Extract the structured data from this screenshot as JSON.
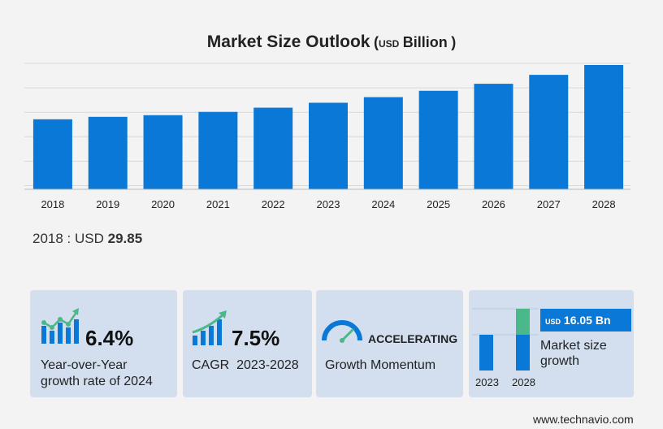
{
  "title": {
    "main": "Market Size Outlook",
    "open": "(",
    "unit": "USD",
    "label": "Billion",
    "close": ")"
  },
  "chart_data": {
    "type": "bar",
    "categories": [
      "2018",
      "2019",
      "2020",
      "2021",
      "2022",
      "2023",
      "2024",
      "2025",
      "2026",
      "2027",
      "2028"
    ],
    "values": [
      29.85,
      30.9,
      31.6,
      33.0,
      34.8,
      36.9,
      39.3,
      42.0,
      45.0,
      48.8,
      53.0
    ],
    "ylim": [
      0,
      53.0
    ],
    "grid": true,
    "bar_color": "#0a78d6"
  },
  "base_year": {
    "label": "2018 : USD",
    "value": "29.85"
  },
  "cards": {
    "yoy": {
      "value": "6.4%",
      "line1": "Year-over-Year",
      "line2": "growth rate of 2024"
    },
    "cagr": {
      "value": "7.5%",
      "line1": "CAGR  2023-2028"
    },
    "momentum": {
      "status": "ACCELERATING",
      "line1": "Growth Momentum"
    },
    "growth": {
      "unit": "USD",
      "amount": "16.05 Bn",
      "line1": "Market size",
      "line2": "growth",
      "year_a": "2023",
      "year_b": "2028",
      "accent": "#4bb88a"
    }
  },
  "footer": "www.technavio.com"
}
